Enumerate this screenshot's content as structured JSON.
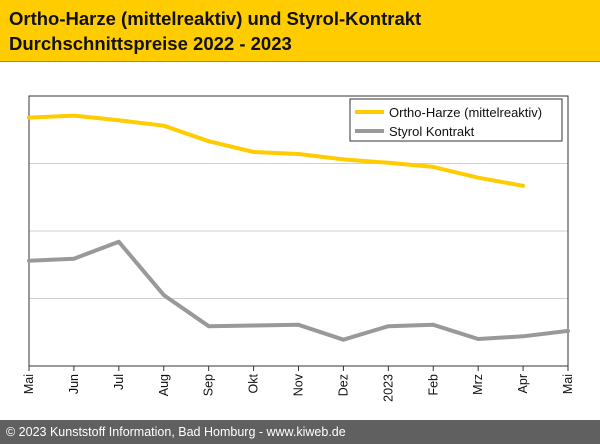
{
  "header": {
    "title_line1": "Ortho-Harze (mittelreaktiv) und Styrol-Kontrakt",
    "title_line2": "Durchschnittspreise 2022 - 2023"
  },
  "footer": {
    "copyright": "© 2023 Kunststoff Information, Bad Homburg - www.kiweb.de"
  },
  "colors": {
    "ortho": "#ffcc00",
    "styrol": "#999999",
    "grid": "#d0d0d0",
    "axis": "#333333"
  },
  "chart_data": {
    "type": "line",
    "title": "Ortho-Harze (mittelreaktiv) und Styrol-Kontrakt Durchschnittspreise 2022 - 2023",
    "xlabel": "",
    "ylabel": "",
    "categories": [
      "Mai",
      "Jun",
      "Jul",
      "Aug",
      "Sep",
      "Okt",
      "Nov",
      "Dez",
      "2023",
      "Feb",
      "Mrz",
      "Apr",
      "Mai"
    ],
    "ylim": [
      0,
      4
    ],
    "y_ticks": [
      0,
      1,
      2,
      3,
      4
    ],
    "y_tick_labels_visible": false,
    "grid": "horizontal",
    "legend_position": "top-right",
    "series": [
      {
        "name": "Ortho-Harze (mittelreaktiv)",
        "color": "#ffcc00",
        "values": [
          3.68,
          3.71,
          3.64,
          3.56,
          3.33,
          3.17,
          3.14,
          3.06,
          3.01,
          2.95,
          2.79,
          2.67,
          null
        ]
      },
      {
        "name": "Styrol Kontrakt",
        "color": "#999999",
        "values": [
          1.56,
          1.59,
          1.84,
          1.05,
          0.59,
          0.6,
          0.61,
          0.39,
          0.59,
          0.61,
          0.4,
          0.44,
          0.52
        ]
      }
    ]
  }
}
